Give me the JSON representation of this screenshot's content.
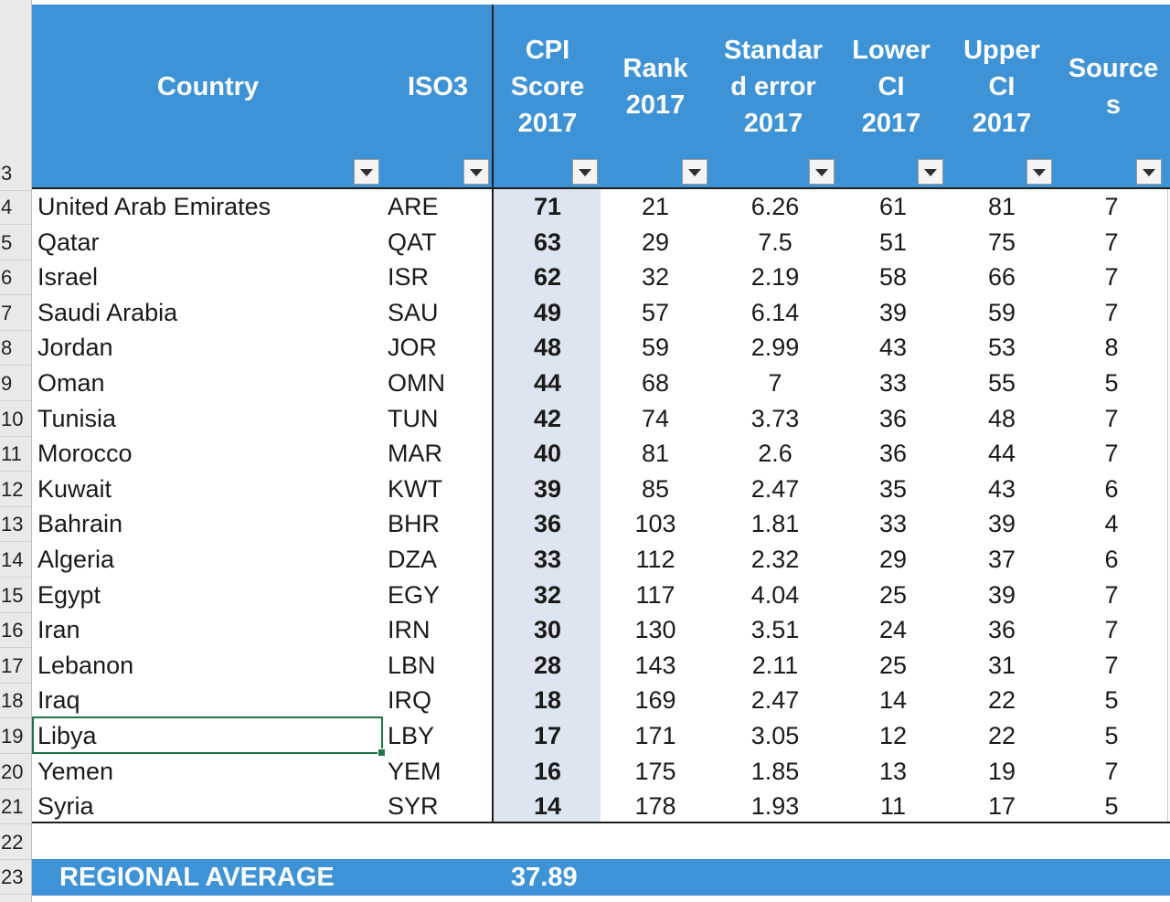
{
  "spreadsheet": {
    "row_numbers": [
      "3",
      "4",
      "5",
      "6",
      "7",
      "8",
      "9",
      "10",
      "11",
      "12",
      "13",
      "14",
      "15",
      "16",
      "17",
      "18",
      "19",
      "20",
      "21",
      "22",
      "23"
    ],
    "headers": {
      "country": "Country",
      "iso": "ISO3",
      "cpi": "CPI\nScore\n2017",
      "rank": "Rank\n2017",
      "se": "Standar\nd error\n2017",
      "lower": "Lower\nCI\n2017",
      "upper": "Upper\nCI\n2017",
      "sources": "Source\ns"
    },
    "rows": [
      {
        "country": "United Arab Emirates",
        "iso": "ARE",
        "cpi": "71",
        "rank": "21",
        "se": "6.26",
        "lower": "61",
        "upper": "81",
        "sources": "7"
      },
      {
        "country": "Qatar",
        "iso": "QAT",
        "cpi": "63",
        "rank": "29",
        "se": "7.5",
        "lower": "51",
        "upper": "75",
        "sources": "7"
      },
      {
        "country": "Israel",
        "iso": "ISR",
        "cpi": "62",
        "rank": "32",
        "se": "2.19",
        "lower": "58",
        "upper": "66",
        "sources": "7"
      },
      {
        "country": "Saudi Arabia",
        "iso": "SAU",
        "cpi": "49",
        "rank": "57",
        "se": "6.14",
        "lower": "39",
        "upper": "59",
        "sources": "7"
      },
      {
        "country": "Jordan",
        "iso": "JOR",
        "cpi": "48",
        "rank": "59",
        "se": "2.99",
        "lower": "43",
        "upper": "53",
        "sources": "8"
      },
      {
        "country": "Oman",
        "iso": "OMN",
        "cpi": "44",
        "rank": "68",
        "se": "7",
        "lower": "33",
        "upper": "55",
        "sources": "5"
      },
      {
        "country": "Tunisia",
        "iso": "TUN",
        "cpi": "42",
        "rank": "74",
        "se": "3.73",
        "lower": "36",
        "upper": "48",
        "sources": "7"
      },
      {
        "country": "Morocco",
        "iso": "MAR",
        "cpi": "40",
        "rank": "81",
        "se": "2.6",
        "lower": "36",
        "upper": "44",
        "sources": "7"
      },
      {
        "country": "Kuwait",
        "iso": "KWT",
        "cpi": "39",
        "rank": "85",
        "se": "2.47",
        "lower": "35",
        "upper": "43",
        "sources": "6"
      },
      {
        "country": "Bahrain",
        "iso": "BHR",
        "cpi": "36",
        "rank": "103",
        "se": "1.81",
        "lower": "33",
        "upper": "39",
        "sources": "4"
      },
      {
        "country": "Algeria",
        "iso": "DZA",
        "cpi": "33",
        "rank": "112",
        "se": "2.32",
        "lower": "29",
        "upper": "37",
        "sources": "6"
      },
      {
        "country": "Egypt",
        "iso": "EGY",
        "cpi": "32",
        "rank": "117",
        "se": "4.04",
        "lower": "25",
        "upper": "39",
        "sources": "7"
      },
      {
        "country": "Iran",
        "iso": "IRN",
        "cpi": "30",
        "rank": "130",
        "se": "3.51",
        "lower": "24",
        "upper": "36",
        "sources": "7"
      },
      {
        "country": "Lebanon",
        "iso": "LBN",
        "cpi": "28",
        "rank": "143",
        "se": "2.11",
        "lower": "25",
        "upper": "31",
        "sources": "7"
      },
      {
        "country": "Iraq",
        "iso": "IRQ",
        "cpi": "18",
        "rank": "169",
        "se": "2.47",
        "lower": "14",
        "upper": "22",
        "sources": "5"
      },
      {
        "country": "Libya",
        "iso": "LBY",
        "cpi": "17",
        "rank": "171",
        "se": "3.05",
        "lower": "12",
        "upper": "22",
        "sources": "5"
      },
      {
        "country": "Yemen",
        "iso": "YEM",
        "cpi": "16",
        "rank": "175",
        "se": "1.85",
        "lower": "13",
        "upper": "19",
        "sources": "7"
      },
      {
        "country": "Syria",
        "iso": "SYR",
        "cpi": "14",
        "rank": "178",
        "se": "1.93",
        "lower": "11",
        "upper": "17",
        "sources": "5"
      }
    ],
    "summary": {
      "label": "REGIONAL AVERAGE",
      "value": "37.89"
    },
    "selected_row_index": 15,
    "colors": {
      "header_bg": "#3d93d6",
      "cpi_column_bg": "#dde6f0",
      "selection": "#217346"
    }
  }
}
